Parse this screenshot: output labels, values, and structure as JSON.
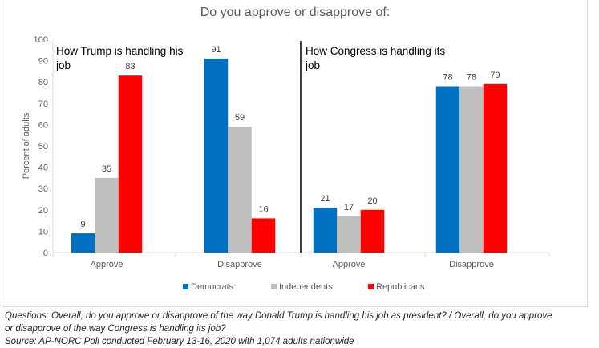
{
  "chart_data": {
    "type": "bar",
    "title": "Do you approve or disapprove of:",
    "ylabel": "Percent of adults",
    "ylim": [
      0,
      100
    ],
    "yticks": [
      0,
      10,
      20,
      30,
      40,
      50,
      60,
      70,
      80,
      90,
      100
    ],
    "grid": false,
    "legend_position": "bottom",
    "panels": [
      {
        "label": "How Trump is handling his job",
        "label_lines": [
          "How Trump is handling his",
          "job"
        ],
        "categories": [
          "Approve",
          "Disapprove"
        ],
        "series": [
          {
            "name": "Democrats",
            "values": [
              9,
              91
            ]
          },
          {
            "name": "Independents",
            "values": [
              35,
              59
            ]
          },
          {
            "name": "Republicans",
            "values": [
              83,
              16
            ]
          }
        ]
      },
      {
        "label": "How Congress is handling its job",
        "label_lines": [
          "How Congress is handling its",
          "job"
        ],
        "categories": [
          "Approve",
          "Disapprove"
        ],
        "series": [
          {
            "name": "Democrats",
            "values": [
              21,
              78
            ]
          },
          {
            "name": "Independents",
            "values": [
              17,
              78
            ]
          },
          {
            "name": "Republicans",
            "values": [
              20,
              79
            ]
          }
        ]
      }
    ],
    "legend": [
      "Democrats",
      "Independents",
      "Republicans"
    ],
    "colors": {
      "Democrats": "#0070c0",
      "Independents": "#bfbfbf",
      "Republicans": "#ff0000"
    }
  },
  "captions": {
    "line1": "Questions: Overall, do you approve or disapprove of the way Donald Trump is handling his job as president? / Overall, do you approve",
    "line2": "or disapprove of the way Congress is handling its job?",
    "line3": "Source: AP-NORC Poll conducted February 13-16, 2020 with 1,074 adults nationwide"
  }
}
